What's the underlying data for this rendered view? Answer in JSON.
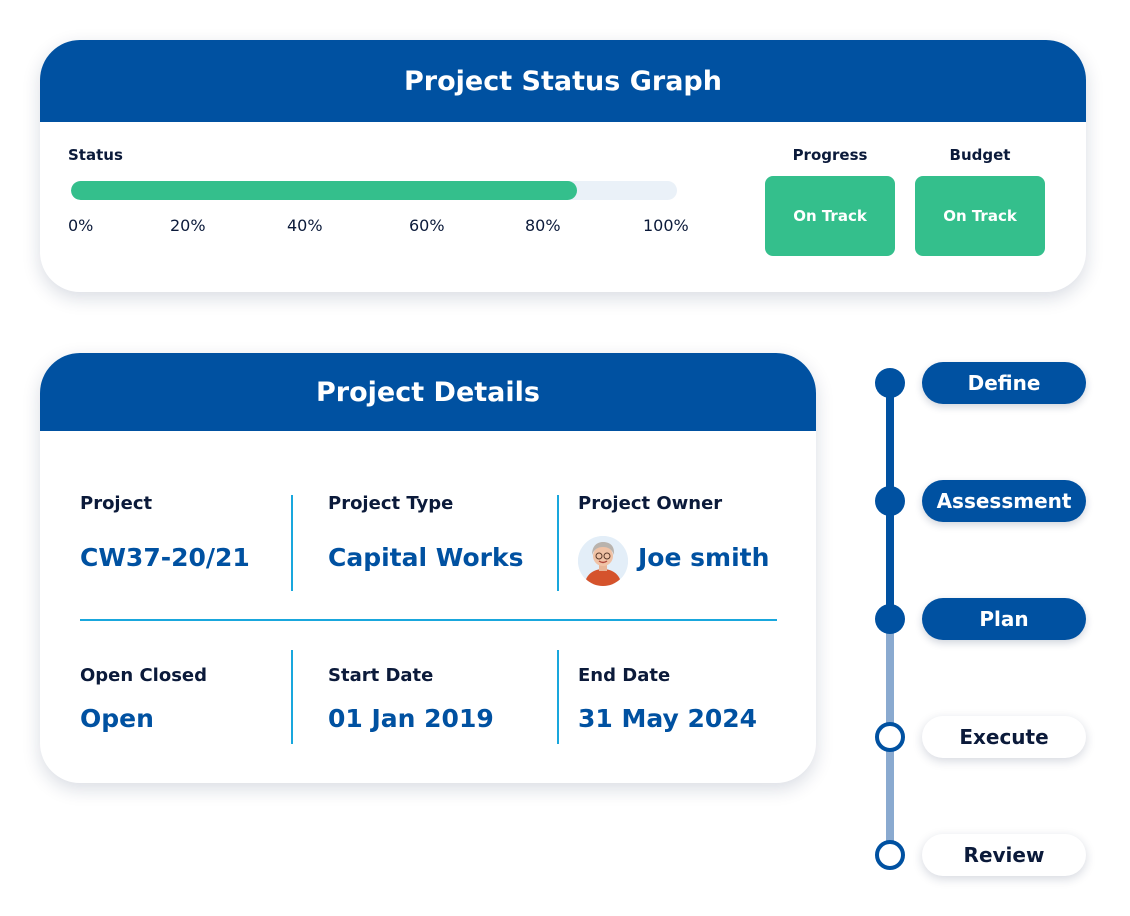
{
  "status_graph": {
    "title": "Project Status Graph",
    "status_label": "Status",
    "progress_fraction": 0.835,
    "ticks": [
      "0%",
      "20%",
      "40%",
      "60%",
      "80%",
      "100%"
    ],
    "progress": {
      "title": "Progress",
      "value": "On Track"
    },
    "budget": {
      "title": "Budget",
      "value": "On Track"
    },
    "colors": {
      "header": "#0051a1",
      "on_track": "#34bf8c",
      "track": "#eaf1f8"
    }
  },
  "details": {
    "title": "Project Details",
    "project": {
      "label": "Project",
      "value": "CW37-20/21"
    },
    "project_type": {
      "label": "Project Type",
      "value": "Capital Works"
    },
    "project_owner": {
      "label": "Project Owner",
      "value": "Joe smith",
      "avatar_icon": "person-avatar"
    },
    "open_closed": {
      "label": "Open Closed",
      "value": "Open"
    },
    "start_date": {
      "label": "Start Date",
      "value": "01 Jan 2019"
    },
    "end_date": {
      "label": "End Date",
      "value": "31 May 2024"
    }
  },
  "timeline": {
    "stages": [
      {
        "label": "Define",
        "state": "completed"
      },
      {
        "label": "Assessment",
        "state": "completed"
      },
      {
        "label": "Plan",
        "state": "completed"
      },
      {
        "label": "Execute",
        "state": "pending"
      },
      {
        "label": "Review",
        "state": "pending"
      }
    ],
    "colors": {
      "active": "#0051a1",
      "inactive": "#8aaad0"
    }
  }
}
